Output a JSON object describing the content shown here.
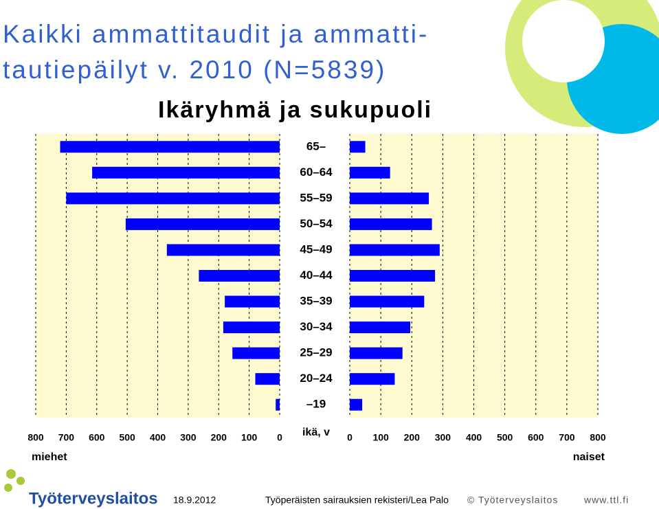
{
  "chart_data": {
    "type": "pyramid",
    "title": "Kaikki ammattitaudit ja ammatti-tautiepäilyt v. 2010 (N=5839)",
    "subtitle": "Ikäryhmä ja sukupuoli",
    "categories": [
      "65–",
      "60–64",
      "55–59",
      "50–54",
      "45–49",
      "40–44",
      "35–39",
      "30–34",
      "25–29",
      "20–24",
      "–19"
    ],
    "category_axis_label": "ikä, v",
    "series": [
      {
        "name": "miehet",
        "color": "#0000ff",
        "values": [
          720,
          615,
          700,
          505,
          370,
          265,
          180,
          185,
          155,
          80,
          13
        ]
      },
      {
        "name": "naiset",
        "color": "#0000ff",
        "values": [
          50,
          130,
          255,
          265,
          290,
          275,
          240,
          195,
          170,
          145,
          40
        ]
      }
    ],
    "xlim": [
      0,
      800
    ],
    "xticks": [
      0,
      100,
      200,
      300,
      400,
      500,
      600,
      700,
      800
    ],
    "grid": true
  },
  "footer": {
    "logo": "Työterveyslaitos",
    "date": "18.9.2012",
    "source": "Työperäisten sairauksien rekisteri/Lea Palo",
    "copyright": "© Työterveyslaitos",
    "url": "www.ttl.fi"
  }
}
